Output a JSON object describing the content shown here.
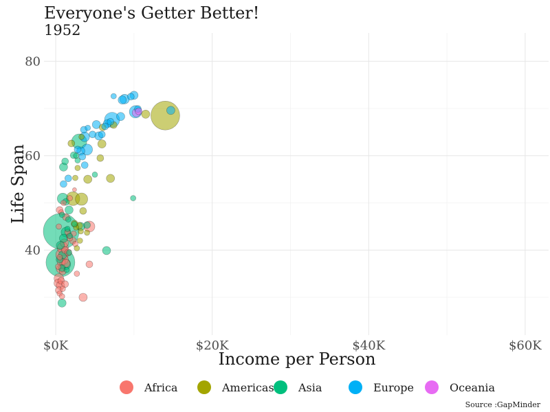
{
  "chart_data": {
    "type": "scatter",
    "title": "Everyone's Getter Better!",
    "subtitle": "1952",
    "xlabel": "Income per Person",
    "ylabel": "Life Span",
    "caption": "Source :GapMinder",
    "xlim": [
      -1500,
      63000
    ],
    "ylim": [
      22,
      86
    ],
    "xticks": [
      0,
      20000,
      40000,
      60000
    ],
    "xtick_labels": [
      "$0K",
      "$20K",
      "$40K",
      "$60K"
    ],
    "yticks": [
      40,
      60,
      80
    ],
    "ytick_labels": [
      "40",
      "60",
      "80"
    ],
    "grid": true,
    "legend_position": "bottom",
    "colors": {
      "Africa": "#f8766d",
      "Americas": "#a3a500",
      "Asia": "#00bf7d",
      "Europe": "#00b0f6",
      "Oceania": "#e76bf3"
    },
    "series": [
      {
        "name": "Africa",
        "points": [
          [
            500,
            48.5,
            5
          ],
          [
            700,
            48,
            4
          ],
          [
            1000,
            50,
            4
          ],
          [
            1300,
            47,
            5
          ],
          [
            1800,
            51,
            4
          ],
          [
            2400,
            52.8,
            3
          ],
          [
            4300,
            45,
            8
          ],
          [
            400,
            45,
            4
          ],
          [
            1700,
            43,
            4
          ],
          [
            2200,
            42,
            5
          ],
          [
            2500,
            41.3,
            4
          ],
          [
            1100,
            41.5,
            6
          ],
          [
            900,
            40.5,
            8
          ],
          [
            1200,
            40,
            5
          ],
          [
            1600,
            39.5,
            5
          ],
          [
            800,
            39,
            9
          ],
          [
            500,
            38.5,
            4
          ],
          [
            1000,
            38,
            7
          ],
          [
            700,
            37.5,
            6
          ],
          [
            1300,
            37.2,
            6
          ],
          [
            600,
            36,
            6
          ],
          [
            900,
            35.5,
            5
          ],
          [
            400,
            34,
            7
          ],
          [
            700,
            33.5,
            5
          ],
          [
            300,
            33,
            6
          ],
          [
            600,
            32.5,
            6
          ],
          [
            400,
            31.5,
            5
          ],
          [
            1200,
            32.8,
            5
          ],
          [
            900,
            31.8,
            4
          ],
          [
            500,
            30.8,
            4
          ],
          [
            800,
            30.2,
            4
          ],
          [
            300,
            36.5,
            4
          ],
          [
            3500,
            30,
            6
          ],
          [
            2700,
            35,
            4
          ],
          [
            4300,
            37,
            5
          ],
          [
            1500,
            43.8,
            4
          ],
          [
            1800,
            42.5,
            4
          ],
          [
            2300,
            43.5,
            4
          ]
        ]
      },
      {
        "name": "Americas",
        "points": [
          [
            14000,
            68.5,
            21
          ],
          [
            11500,
            68.8,
            6
          ],
          [
            7400,
            66.5,
            5
          ],
          [
            6000,
            66,
            5
          ],
          [
            5900,
            62.5,
            6
          ],
          [
            5700,
            59.5,
            5
          ],
          [
            2000,
            62.6,
            5
          ],
          [
            3300,
            64,
            4
          ],
          [
            2800,
            57.4,
            4
          ],
          [
            2500,
            55.3,
            4
          ],
          [
            4100,
            55,
            6
          ],
          [
            7000,
            55.2,
            6
          ],
          [
            3300,
            50.8,
            9
          ],
          [
            2200,
            50.9,
            10
          ],
          [
            3500,
            48.3,
            5
          ],
          [
            3000,
            45.2,
            5
          ],
          [
            4000,
            43.7,
            4
          ],
          [
            2700,
            40.4,
            4
          ],
          [
            3100,
            42,
            4
          ],
          [
            2400,
            45.6,
            5
          ],
          [
            2600,
            44.8,
            4
          ],
          [
            3200,
            44,
            4
          ]
        ]
      },
      {
        "name": "Asia",
        "points": [
          [
            3000,
            63,
            11
          ],
          [
            9900,
            51,
            4
          ],
          [
            1000,
            57.6,
            6
          ],
          [
            1200,
            58.8,
            5
          ],
          [
            2300,
            60.1,
            5
          ],
          [
            2800,
            59,
            4
          ],
          [
            5000,
            56,
            4
          ],
          [
            2600,
            60,
            4
          ],
          [
            900,
            50.9,
            8
          ],
          [
            1300,
            50.2,
            5
          ],
          [
            1700,
            48.5,
            6
          ],
          [
            800,
            47.5,
            4
          ],
          [
            1600,
            46.5,
            4
          ],
          [
            3200,
            45,
            6
          ],
          [
            4000,
            45.3,
            5
          ],
          [
            700,
            44,
            26
          ],
          [
            1300,
            43.8,
            7
          ],
          [
            1000,
            42.5,
            6
          ],
          [
            600,
            41,
            6
          ],
          [
            1800,
            43,
            4
          ],
          [
            6500,
            39.9,
            6
          ],
          [
            600,
            37.4,
            21
          ],
          [
            1200,
            37,
            8
          ],
          [
            800,
            36.2,
            5
          ],
          [
            1400,
            35.8,
            4
          ],
          [
            800,
            28.8,
            6
          ],
          [
            2400,
            45.5,
            4
          ],
          [
            1500,
            44.5,
            4
          ],
          [
            900,
            39,
            6
          ],
          [
            500,
            38,
            5
          ],
          [
            1700,
            39.5,
            4
          ]
        ]
      },
      {
        "name": "Europe",
        "points": [
          [
            7400,
            72.6,
            4
          ],
          [
            8800,
            72,
            7
          ],
          [
            9600,
            72.5,
            5
          ],
          [
            10000,
            72.8,
            6
          ],
          [
            8500,
            71.8,
            6
          ],
          [
            10500,
            69.9,
            5
          ],
          [
            10200,
            69.3,
            9
          ],
          [
            14700,
            69.6,
            6
          ],
          [
            8300,
            68.3,
            6
          ],
          [
            7000,
            67.2,
            5
          ],
          [
            7200,
            67.6,
            11
          ],
          [
            6600,
            66.8,
            6
          ],
          [
            5200,
            66.6,
            6
          ],
          [
            6300,
            66.2,
            5
          ],
          [
            4100,
            65.9,
            4
          ],
          [
            3600,
            65.5,
            5
          ],
          [
            5500,
            64.2,
            6
          ],
          [
            4700,
            64.5,
            5
          ],
          [
            3700,
            64,
            7
          ],
          [
            3200,
            61,
            6
          ],
          [
            2800,
            61.3,
            5
          ],
          [
            4000,
            61.3,
            8
          ],
          [
            3700,
            58,
            5
          ],
          [
            1600,
            55.2,
            5
          ],
          [
            1000,
            54,
            5
          ],
          [
            3400,
            59.8,
            5
          ],
          [
            5900,
            64.5,
            5
          ]
        ]
      },
      {
        "name": "Oceania",
        "points": [
          [
            10300,
            69.1,
            6
          ],
          [
            10600,
            69.4,
            5
          ]
        ]
      }
    ]
  }
}
